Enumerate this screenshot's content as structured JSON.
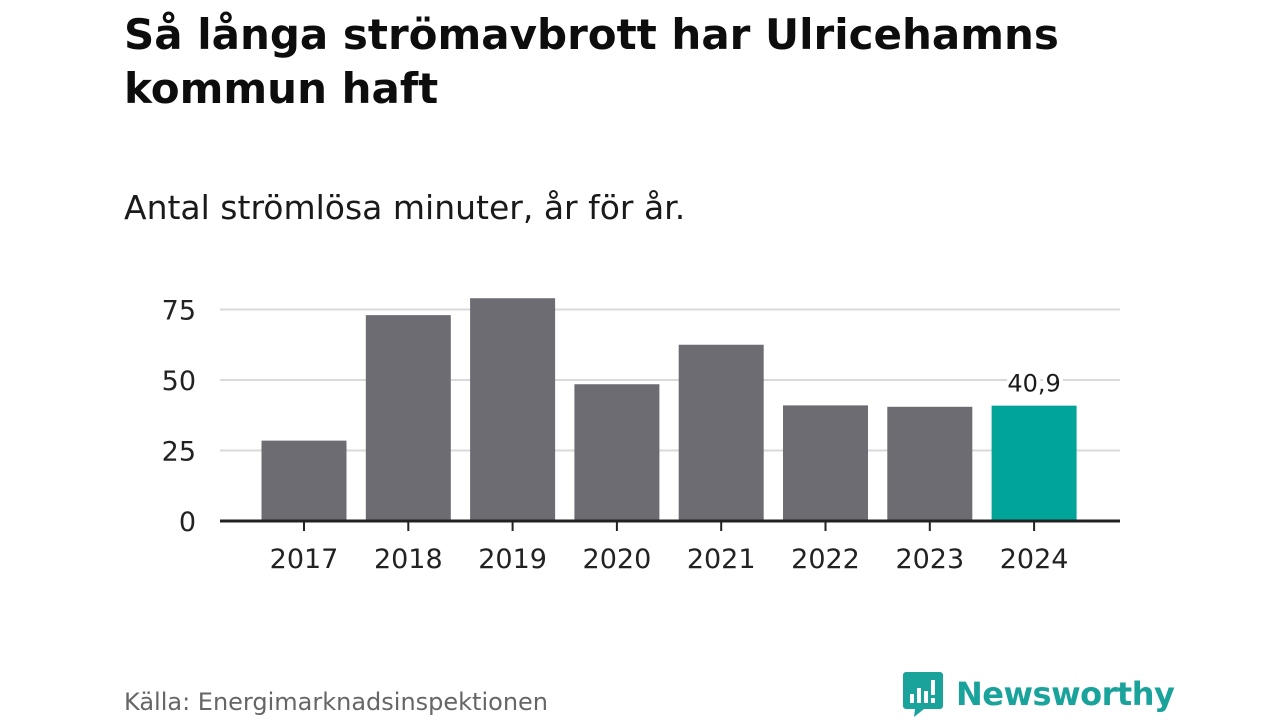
{
  "header": {
    "title": "Så långa strömavbrott har Ulricehamns kommun haft",
    "subtitle": "Antal strömlösa minuter, år för år."
  },
  "chart_data": {
    "type": "bar",
    "title": "Så långa strömavbrott har Ulricehamns kommun haft",
    "subtitle": "Antal strömlösa minuter, år för år.",
    "xlabel": "",
    "ylabel": "",
    "categories": [
      "2017",
      "2018",
      "2019",
      "2020",
      "2021",
      "2022",
      "2023",
      "2024"
    ],
    "values": [
      28.5,
      73,
      79,
      48.5,
      62.5,
      41,
      40.5,
      40.9
    ],
    "ylim": [
      0,
      80
    ],
    "yticks": [
      0,
      25,
      50,
      75
    ],
    "grid": true,
    "highlight_index": 7,
    "data_labels": [
      {
        "index": 7,
        "text": "40,9"
      }
    ],
    "colors": {
      "bar": "#6d6c73",
      "highlight": "#00a499",
      "grid": "#d9d9d9",
      "axis": "#222222"
    }
  },
  "footer": {
    "source": "Källa: Energimarknadsinspektionen",
    "brand": "Newsworthy",
    "brand_color": "#1aa39b"
  }
}
